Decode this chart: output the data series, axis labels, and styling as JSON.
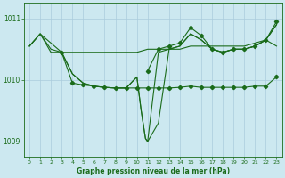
{
  "title": "Graphe pression niveau de la mer (hPa)",
  "bg_color": "#cce8f0",
  "grid_color": "#aaccdd",
  "line_color": "#1a6b1a",
  "xlim": [
    -0.5,
    23.5
  ],
  "ylim": [
    1008.75,
    1011.25
  ],
  "yticks": [
    1009,
    1010,
    1011
  ],
  "xticks": [
    0,
    1,
    2,
    3,
    4,
    5,
    6,
    7,
    8,
    9,
    10,
    11,
    12,
    13,
    14,
    15,
    16,
    17,
    18,
    19,
    20,
    21,
    22,
    23
  ],
  "line1": {
    "x": [
      0,
      1,
      2,
      3,
      4,
      5,
      6,
      7,
      8,
      9,
      10,
      11,
      12,
      13,
      14,
      15,
      16,
      17,
      18,
      19,
      20,
      21,
      22,
      23
    ],
    "y": [
      1010.55,
      1010.75,
      1010.5,
      1010.45,
      1010.45,
      1010.45,
      1010.45,
      1010.45,
      1010.45,
      1010.45,
      1010.45,
      1010.5,
      1010.5,
      1010.5,
      1010.5,
      1010.55,
      1010.55,
      1010.55,
      1010.55,
      1010.55,
      1010.55,
      1010.6,
      1010.65,
      1010.55
    ],
    "markers": false
  },
  "line2": {
    "x": [
      0,
      1,
      2,
      3,
      4,
      5,
      6,
      7,
      8,
      9,
      10,
      10.4,
      10.8,
      11,
      12,
      13,
      14,
      15,
      16,
      17,
      18,
      19,
      20,
      21,
      22,
      23
    ],
    "y": [
      1010.55,
      1010.75,
      1010.45,
      1010.45,
      1010.1,
      1009.95,
      1009.9,
      1009.88,
      1009.87,
      1009.87,
      1010.05,
      1009.5,
      1009.05,
      1009.0,
      1009.3,
      1010.5,
      1010.55,
      1010.75,
      1010.65,
      1010.5,
      1010.45,
      1010.5,
      1010.5,
      1010.55,
      1010.65,
      1010.9
    ],
    "markers": false
  },
  "line3": {
    "x": [
      0,
      1,
      3,
      4,
      5,
      6,
      7,
      8,
      9,
      10,
      10.4,
      10.8,
      11,
      12,
      13,
      14,
      15,
      16,
      17,
      18,
      19,
      20,
      21,
      22,
      23
    ],
    "y": [
      1010.55,
      1010.75,
      1010.45,
      1010.1,
      1009.95,
      1009.9,
      1009.88,
      1009.87,
      1009.87,
      1010.05,
      1009.5,
      1009.05,
      1009.0,
      1010.45,
      1010.5,
      1010.55,
      1010.75,
      1010.65,
      1010.5,
      1010.45,
      1010.5,
      1010.5,
      1010.55,
      1010.65,
      1010.9
    ],
    "markers": false
  },
  "line4": {
    "x": [
      3,
      4,
      5,
      6,
      7,
      8,
      9,
      10,
      11,
      12,
      13,
      14,
      15,
      16,
      17,
      18,
      19,
      20,
      21,
      22,
      23
    ],
    "y": [
      1010.45,
      1009.95,
      1009.92,
      1009.9,
      1009.88,
      1009.87,
      1009.87,
      1009.87,
      1009.87,
      1009.87,
      1009.87,
      1009.88,
      1009.9,
      1009.88,
      1009.88,
      1009.88,
      1009.88,
      1009.88,
      1009.9,
      1009.9,
      1010.05
    ],
    "markers": true
  },
  "line5": {
    "x": [
      11,
      12,
      13,
      14,
      15,
      16,
      17,
      18,
      19,
      20,
      21,
      22,
      23
    ],
    "y": [
      1010.15,
      1010.5,
      1010.55,
      1010.6,
      1010.85,
      1010.72,
      1010.5,
      1010.45,
      1010.5,
      1010.5,
      1010.55,
      1010.65,
      1010.95
    ],
    "markers": true
  }
}
